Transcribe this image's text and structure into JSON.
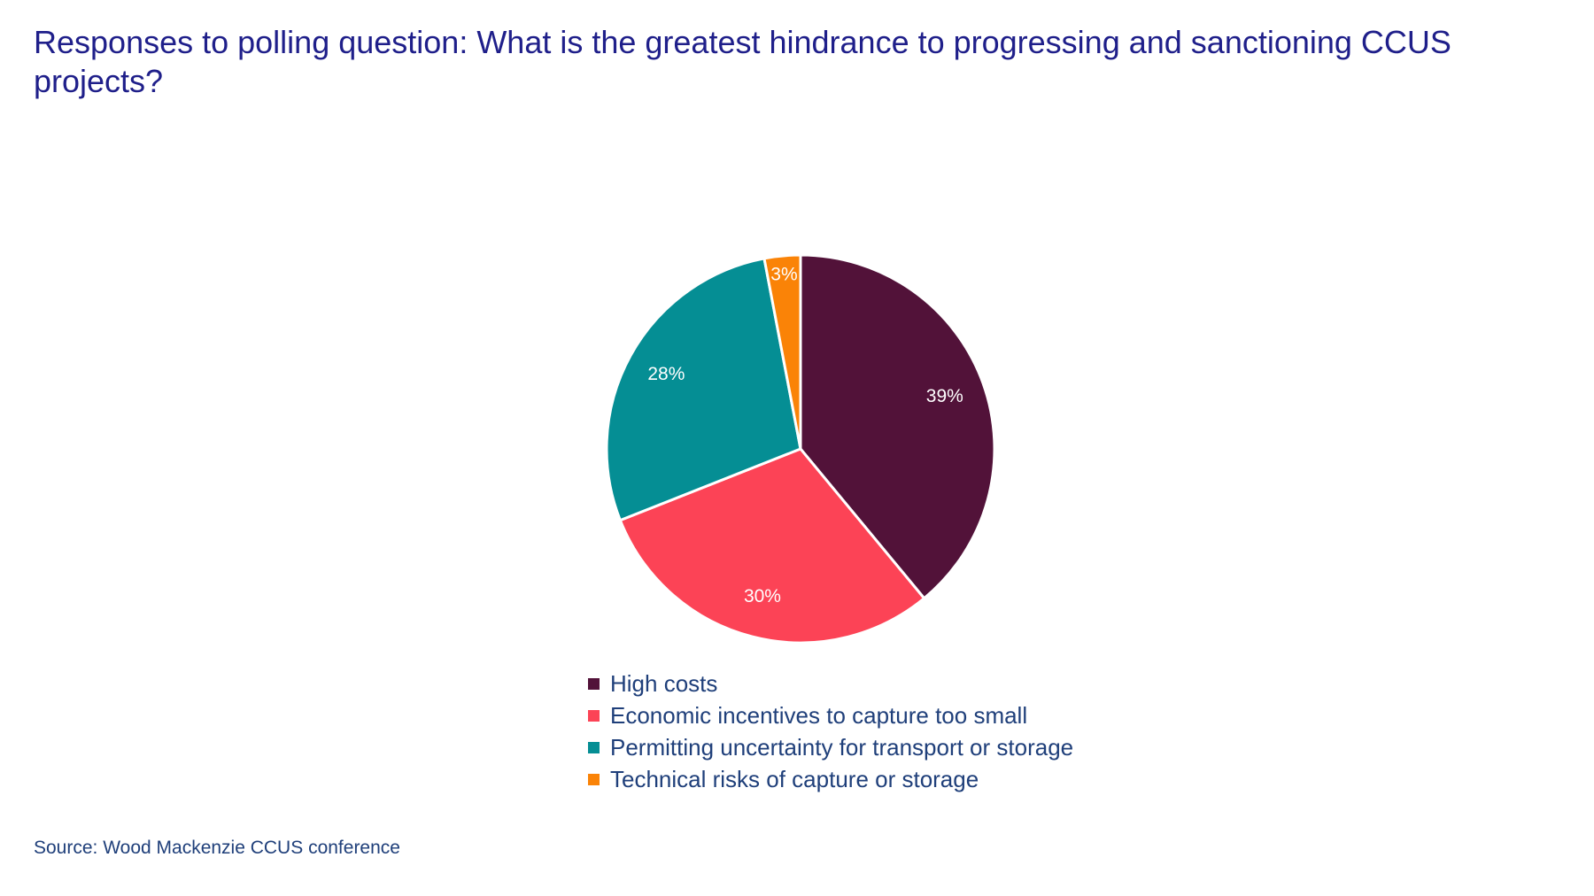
{
  "title": "Responses to polling question: What is the greatest hindrance to progressing and sanctioning CCUS projects?",
  "source": "Source: Wood Mackenzie CCUS conference",
  "chart_data": {
    "type": "pie",
    "title": "Responses to polling question: What is the greatest hindrance to progressing and sanctioning CCUS projects?",
    "legend_position": "bottom",
    "slices": [
      {
        "name": "High costs",
        "value": 39,
        "label": "39%",
        "color": "#521239"
      },
      {
        "name": "Economic incentives to capture too small",
        "value": 30,
        "label": "30%",
        "color": "#fc4356"
      },
      {
        "name": "Permitting uncertainty for transport or storage",
        "value": 28,
        "label": "28%",
        "color": "#058e94"
      },
      {
        "name": "Technical risks of capture or storage",
        "value": 3,
        "label": "3%",
        "color": "#fa8307"
      }
    ]
  }
}
